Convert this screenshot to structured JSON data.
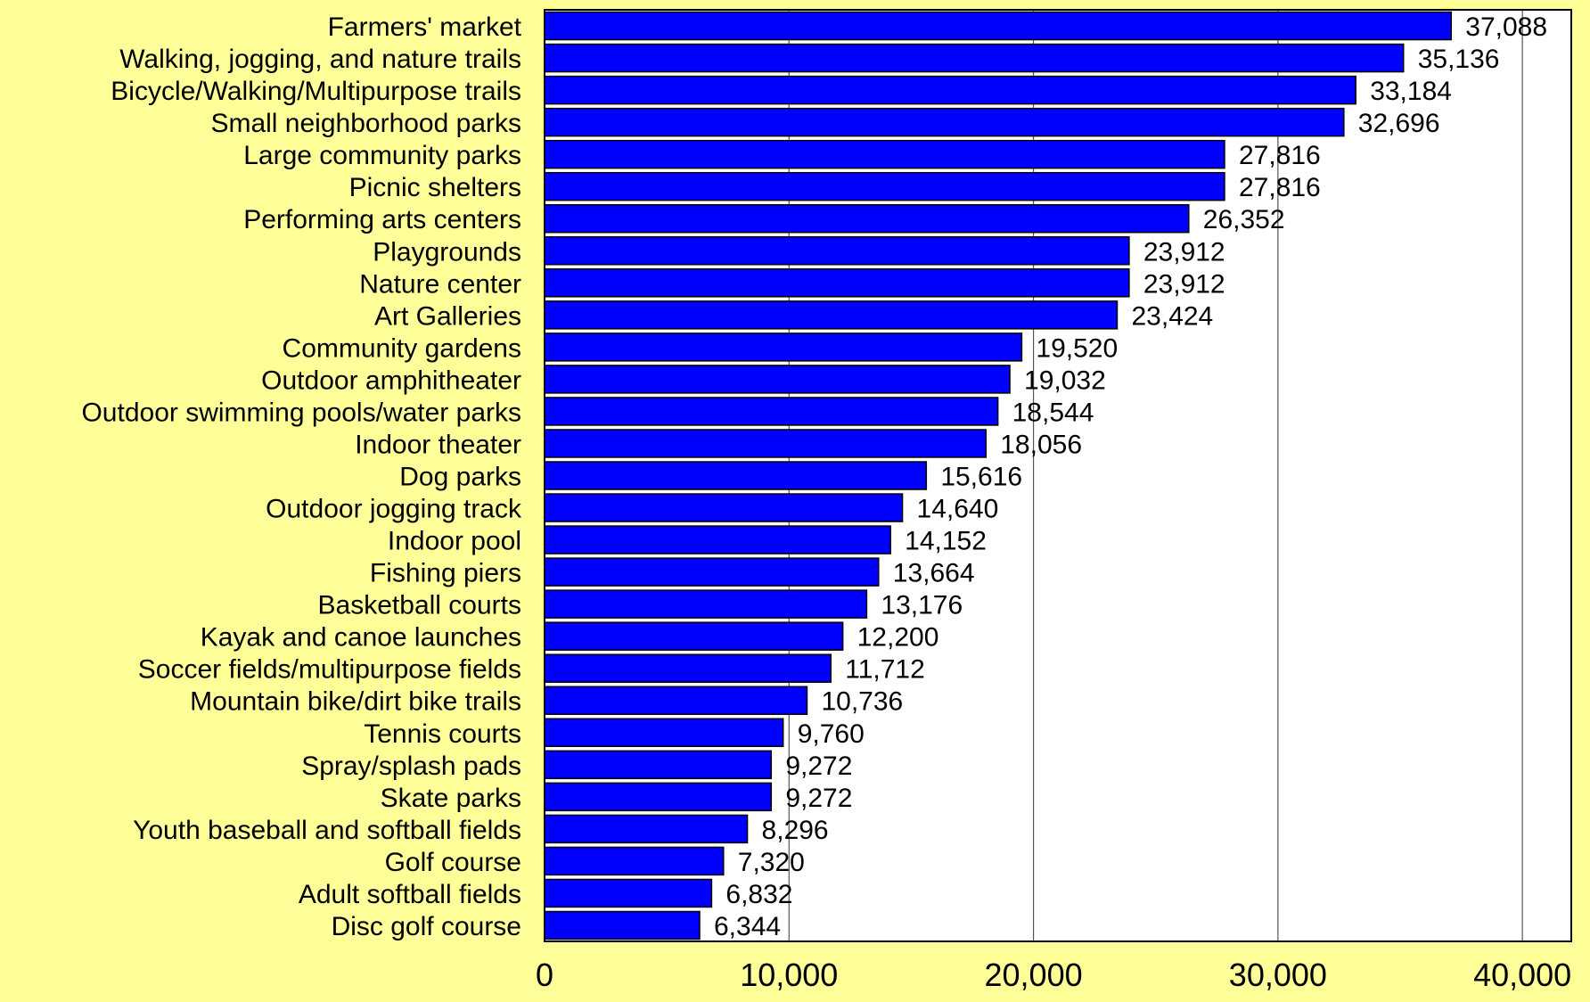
{
  "chart_data": {
    "type": "bar",
    "orientation": "horizontal",
    "categories": [
      "Farmers' market",
      "Walking, jogging, and nature trails",
      "Bicycle/Walking/Multipurpose trails",
      "Small neighborhood parks",
      "Large community parks",
      "Picnic shelters",
      "Performing arts centers",
      "Playgrounds",
      "Nature center",
      "Art Galleries",
      "Community gardens",
      "Outdoor amphitheater",
      "Outdoor swimming pools/water parks",
      "Indoor theater",
      "Dog parks",
      "Outdoor jogging track",
      "Indoor pool",
      "Fishing piers",
      "Basketball courts",
      "Kayak and canoe launches",
      "Soccer fields/multipurpose fields",
      "Mountain bike/dirt bike trails",
      "Tennis courts",
      "Spray/splash pads",
      "Skate parks",
      "Youth baseball and softball fields",
      "Golf course",
      "Adult softball fields",
      "Disc golf course"
    ],
    "values": [
      37088,
      35136,
      33184,
      32696,
      27816,
      27816,
      26352,
      23912,
      23912,
      23424,
      19520,
      19032,
      18544,
      18056,
      15616,
      14640,
      14152,
      13664,
      13176,
      12200,
      11712,
      10736,
      9760,
      9272,
      9272,
      8296,
      7320,
      6832,
      6344
    ],
    "value_labels": [
      "37,088",
      "35,136",
      "33,184",
      "32,696",
      "27,816",
      "27,816",
      "26,352",
      "23,912",
      "23,912",
      "23,424",
      "19,520",
      "19,032",
      "18,544",
      "18,056",
      "15,616",
      "14,640",
      "14,152",
      "13,664",
      "13,176",
      "12,200",
      "11,712",
      "10,736",
      "9,760",
      "9,272",
      "9,272",
      "8,296",
      "7,320",
      "6,832",
      "6,344"
    ],
    "xticks": [
      0,
      10000,
      20000,
      30000,
      40000
    ],
    "xtick_labels": [
      "0",
      "10,000",
      "20,000",
      "30,000",
      "40,000"
    ],
    "xlim": [
      0,
      42000
    ],
    "grid": "vertical",
    "colors": {
      "bar": "#0000ff",
      "bar_edge": "#000000",
      "background": "#ffff99",
      "plot_area": "#ffffff",
      "gridline": "#555555"
    }
  }
}
